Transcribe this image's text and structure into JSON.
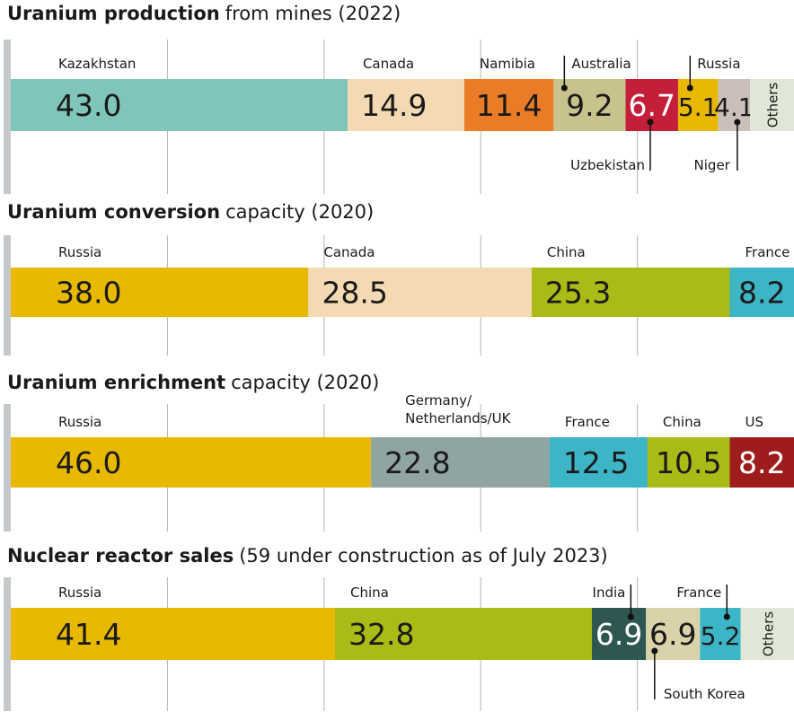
{
  "chart_data": [
    {
      "type": "bar",
      "title": "Uranium production",
      "subtitle": "from mines (2022)",
      "xlim": [
        0,
        100
      ],
      "xticks": [
        20,
        40,
        60,
        80
      ],
      "grid": true,
      "series": [
        {
          "name": "Kazakhstan",
          "color": "#80c5ba",
          "values": [
            43
          ],
          "value_labels": [
            "43.0"
          ]
        },
        {
          "name": "Canada",
          "color": "#f3dab2",
          "values": [
            14.9
          ]
        },
        {
          "name": "Namibia",
          "color": "#ea7b27",
          "values": [
            11.4
          ]
        },
        {
          "name": "Australia",
          "color": "#c8c28c",
          "values": [
            9.2
          ]
        },
        {
          "name": "Uzbekistan",
          "color": "#c31f3b",
          "values": [
            6.7
          ]
        },
        {
          "name": "Russia",
          "color": "#e8b900",
          "values": [
            5.1
          ]
        },
        {
          "name": "Niger",
          "color": "#cbbfbb",
          "values": [
            4.1
          ]
        },
        {
          "name": "Others",
          "color": "#e1e7d6",
          "values": [
            5.6
          ]
        }
      ]
    },
    {
      "type": "bar",
      "title": "Uranium conversion",
      "subtitle": "capacity (2020)",
      "xlim": [
        0,
        100
      ],
      "xticks": [
        20,
        40,
        60,
        80
      ],
      "grid": true,
      "series": [
        {
          "name": "Russia",
          "color": "#e8b900",
          "values": [
            38
          ],
          "value_labels": [
            "38.0"
          ]
        },
        {
          "name": "Canada",
          "color": "#f3dab2",
          "values": [
            28.5
          ]
        },
        {
          "name": "China",
          "color": "#aaba16",
          "values": [
            25.3
          ]
        },
        {
          "name": "France",
          "color": "#3cb6c6",
          "values": [
            8.2
          ]
        }
      ]
    },
    {
      "type": "bar",
      "title": "Uranium enrichment",
      "subtitle": "capacity (2020)",
      "xlim": [
        0,
        100
      ],
      "xticks": [
        20,
        40,
        60,
        80
      ],
      "grid": true,
      "series": [
        {
          "name": "Russia",
          "color": "#e8b900",
          "values": [
            46
          ],
          "value_labels": [
            "46.0"
          ]
        },
        {
          "name": "Germany/Netherlands/UK",
          "color": "#90a4a1",
          "values": [
            22.8
          ]
        },
        {
          "name": "France",
          "color": "#3cb6c6",
          "values": [
            12.5
          ]
        },
        {
          "name": "China",
          "color": "#aaba16",
          "values": [
            10.5
          ]
        },
        {
          "name": "US",
          "color": "#9e1c1c",
          "values": [
            8.2
          ]
        }
      ]
    },
    {
      "type": "bar",
      "title": "Nuclear reactor sales",
      "subtitle": "(59 under construction as of July 2023)",
      "xlim": [
        0,
        100
      ],
      "xticks": [
        20,
        40,
        60,
        80
      ],
      "grid": true,
      "series": [
        {
          "name": "Russia",
          "color": "#e8b900",
          "values": [
            41.4
          ]
        },
        {
          "name": "China",
          "color": "#aaba16",
          "values": [
            32.8
          ]
        },
        {
          "name": "India",
          "color": "#2e5751",
          "values": [
            6.9
          ]
        },
        {
          "name": "South Korea",
          "color": "#dad3aa",
          "values": [
            6.9
          ]
        },
        {
          "name": "France",
          "color": "#3cb6c6",
          "values": [
            5.2
          ]
        },
        {
          "name": "Others",
          "color": "#e1e7d6",
          "values": [
            6.8
          ]
        }
      ]
    }
  ]
}
